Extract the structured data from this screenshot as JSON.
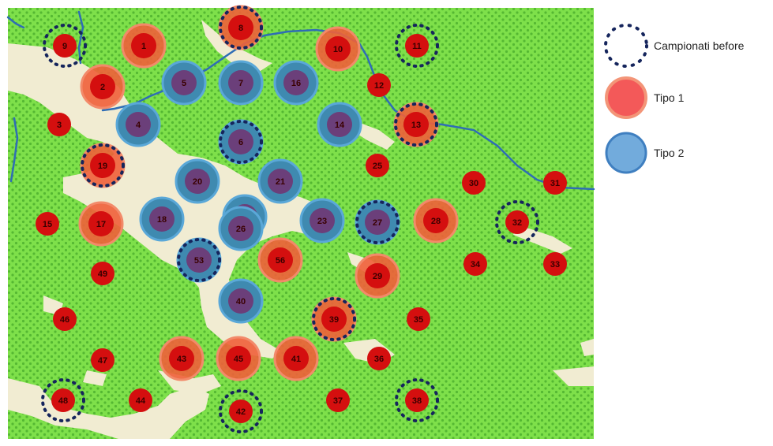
{
  "legend": {
    "before_label": "Campionati before",
    "type1_label": "Tipo 1",
    "type2_label": "Tipo 2"
  },
  "colors": {
    "land": "#7ee04a",
    "dots": "#55b832",
    "open_area": "#f1ecd2",
    "river": "#2f6db5",
    "point": "#d40f0f",
    "type1_fill": "#f0603a",
    "type1_stroke": "#f28a6a",
    "type2_fill": "#3f8ab0",
    "type2_stroke": "#5aa8d8",
    "before_ring": "#15255c"
  },
  "points": [
    {
      "id": "1",
      "label": "1",
      "type": 1,
      "before": false
    },
    {
      "id": "2",
      "label": "2",
      "type": 1,
      "before": false
    },
    {
      "id": "3",
      "label": "3",
      "type": 0,
      "before": false
    },
    {
      "id": "4",
      "label": "4",
      "type": 2,
      "before": false
    },
    {
      "id": "5",
      "label": "5",
      "type": 2,
      "before": false
    },
    {
      "id": "6",
      "label": "6",
      "type": 2,
      "before": true
    },
    {
      "id": "7",
      "label": "7",
      "type": 2,
      "before": false
    },
    {
      "id": "8",
      "label": "8",
      "type": 1,
      "before": true
    },
    {
      "id": "9",
      "label": "9",
      "type": 0,
      "before": true
    },
    {
      "id": "10",
      "label": "10",
      "type": 1,
      "before": false
    },
    {
      "id": "11",
      "label": "11",
      "type": 0,
      "before": true
    },
    {
      "id": "12",
      "label": "12",
      "type": 0,
      "before": false
    },
    {
      "id": "13",
      "label": "13",
      "type": 1,
      "before": true
    },
    {
      "id": "14",
      "label": "14",
      "type": 2,
      "before": false
    },
    {
      "id": "15",
      "label": "15",
      "type": 0,
      "before": false
    },
    {
      "id": "16",
      "label": "16",
      "type": 2,
      "before": false
    },
    {
      "id": "17",
      "label": "17",
      "type": 1,
      "before": false
    },
    {
      "id": "18",
      "label": "18",
      "type": 2,
      "before": false
    },
    {
      "id": "19",
      "label": "19",
      "type": 1,
      "before": true
    },
    {
      "id": "20",
      "label": "20",
      "type": 2,
      "before": false
    },
    {
      "id": "21",
      "label": "21",
      "type": 2,
      "before": false
    },
    {
      "id": "22",
      "label": "22",
      "type": 2,
      "before": false
    },
    {
      "id": "23",
      "label": "23",
      "type": 2,
      "before": false
    },
    {
      "id": "25",
      "label": "25",
      "type": 0,
      "before": false
    },
    {
      "id": "26",
      "label": "26",
      "type": 2,
      "before": false
    },
    {
      "id": "27",
      "label": "27",
      "type": 2,
      "before": true
    },
    {
      "id": "28",
      "label": "28",
      "type": 1,
      "before": false
    },
    {
      "id": "29",
      "label": "29",
      "type": 1,
      "before": false
    },
    {
      "id": "30",
      "label": "30",
      "type": 0,
      "before": false
    },
    {
      "id": "31",
      "label": "31",
      "type": 0,
      "before": false
    },
    {
      "id": "32",
      "label": "32",
      "type": 0,
      "before": true
    },
    {
      "id": "33",
      "label": "33",
      "type": 0,
      "before": false
    },
    {
      "id": "34",
      "label": "34",
      "type": 0,
      "before": false
    },
    {
      "id": "35",
      "label": "35",
      "type": 0,
      "before": false
    },
    {
      "id": "36",
      "label": "36",
      "type": 0,
      "before": false
    },
    {
      "id": "37",
      "label": "37",
      "type": 0,
      "before": false
    },
    {
      "id": "38",
      "label": "38",
      "type": 0,
      "before": true
    },
    {
      "id": "39",
      "label": "39",
      "type": 1,
      "before": true
    },
    {
      "id": "40",
      "label": "40",
      "type": 2,
      "before": false
    },
    {
      "id": "41",
      "label": "41",
      "type": 1,
      "before": false
    },
    {
      "id": "42",
      "label": "42",
      "type": 0,
      "before": true
    },
    {
      "id": "43",
      "label": "43",
      "type": 1,
      "before": false
    },
    {
      "id": "44",
      "label": "44",
      "type": 0,
      "before": false
    },
    {
      "id": "45",
      "label": "45",
      "type": 1,
      "before": false
    },
    {
      "id": "46",
      "label": "46",
      "type": 0,
      "before": false
    },
    {
      "id": "47",
      "label": "47",
      "type": 0,
      "before": false
    },
    {
      "id": "48",
      "label": "48",
      "type": 0,
      "before": true
    },
    {
      "id": "49",
      "label": "49",
      "type": 0,
      "before": false
    },
    {
      "id": "53",
      "label": "53",
      "type": 2,
      "before": true
    },
    {
      "id": "56",
      "label": "56",
      "type": 1,
      "before": false
    }
  ]
}
